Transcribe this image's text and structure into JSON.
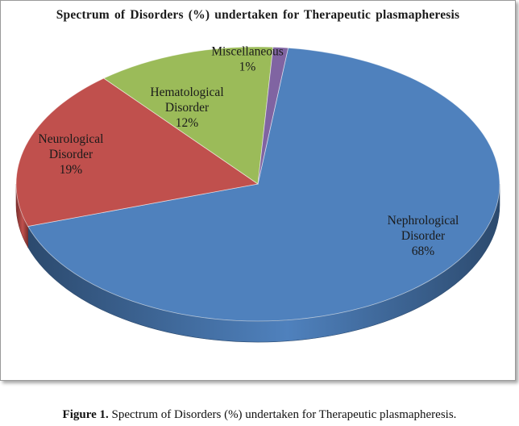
{
  "chart_data": {
    "type": "pie",
    "title": "Spectrum of Disorders (%) undertaken for Therapeutic plasmapheresis",
    "slices": [
      {
        "lines": [
          "Nephrological",
          "Disorder",
          "68%"
        ],
        "value": 68,
        "color": "#4f81bd",
        "dark": "#2c4a6e"
      },
      {
        "lines": [
          "Neurological",
          "Disorder",
          "19%"
        ],
        "value": 19,
        "color": "#c0504d",
        "dark": "#7a2f2d"
      },
      {
        "lines": [
          "Hematological",
          "Disorder",
          "12%"
        ],
        "value": 12,
        "color": "#9bbb59",
        "dark": "#5f7634"
      },
      {
        "lines": [
          "Miscellaneous",
          "1%"
        ],
        "value": 1,
        "color": "#8064a2",
        "dark": "#4d3b63"
      }
    ],
    "legend": "none",
    "style": "3d"
  },
  "figure": {
    "label": "Figure 1.",
    "caption": "Spectrum of Disorders (%) undertaken for Therapeutic plasmapheresis."
  }
}
